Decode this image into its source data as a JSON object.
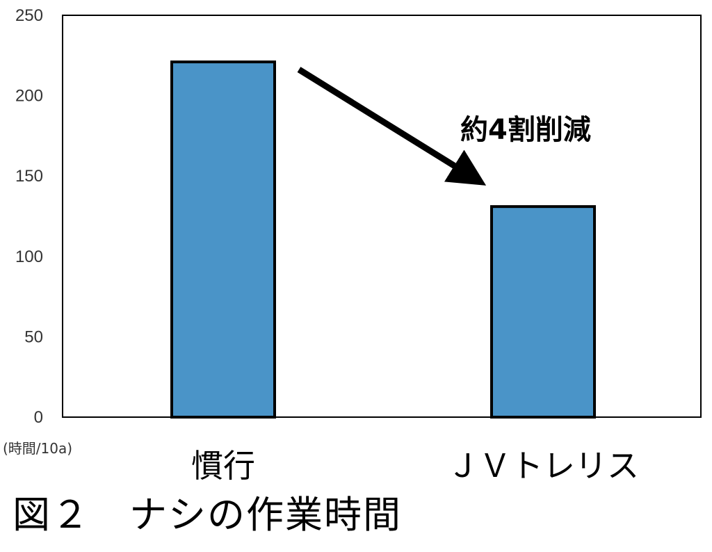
{
  "chart_data": {
    "type": "bar",
    "categories": [
      "慣行",
      "ＪＶトレリス"
    ],
    "values": [
      221,
      131
    ],
    "ylim": [
      0,
      250
    ],
    "yticks": [
      0,
      50,
      100,
      150,
      200,
      250
    ],
    "unit_label": "(時間/10a)",
    "annotation": "約4割削減",
    "bar_color": "#4a94c8",
    "grid": false
  },
  "caption": "図２　ナシの作業時間"
}
